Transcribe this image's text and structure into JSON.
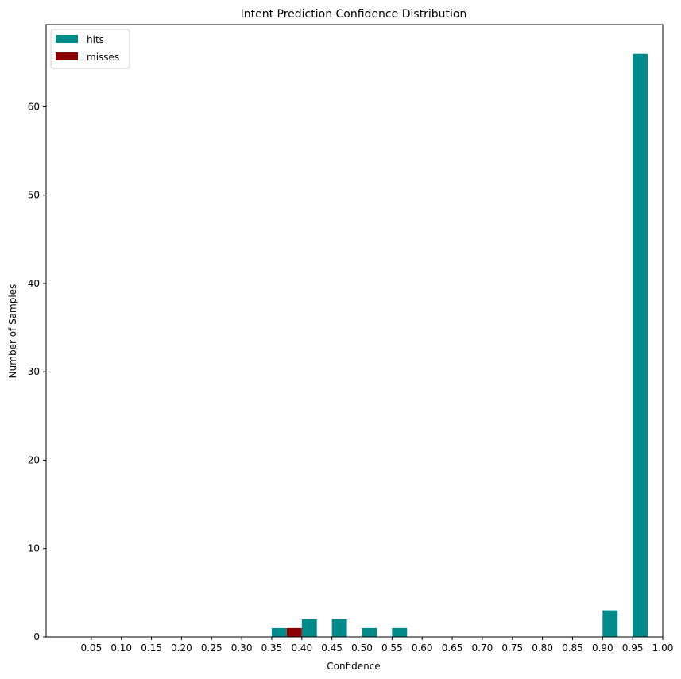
{
  "chart_data": {
    "type": "bar",
    "title": "Intent Prediction Confidence Distribution",
    "xlabel": "Confidence",
    "ylabel": "Number of Samples",
    "x_ticks": [
      "0.05",
      "0.10",
      "0.15",
      "0.20",
      "0.25",
      "0.30",
      "0.35",
      "0.40",
      "0.45",
      "0.50",
      "0.55",
      "0.60",
      "0.65",
      "0.70",
      "0.75",
      "0.80",
      "0.85",
      "0.90",
      "0.95",
      "1.00"
    ],
    "y_ticks": [
      0,
      10,
      20,
      30,
      40,
      50,
      60
    ],
    "xlim": [
      0.0,
      1.0
    ],
    "ylim": [
      0,
      69.3
    ],
    "bin_width": 0.05,
    "bins": [
      0.35,
      0.4,
      0.45,
      0.5,
      0.55,
      0.9,
      0.95
    ],
    "series": [
      {
        "name": "hits",
        "color": "#008b8b",
        "values": [
          1,
          2,
          2,
          1,
          1,
          3,
          66
        ]
      },
      {
        "name": "misses",
        "color": "#8b0000",
        "values": [
          1,
          0,
          0,
          0,
          0,
          0,
          0
        ]
      }
    ],
    "legend_position": "top-left",
    "grid": false
  }
}
